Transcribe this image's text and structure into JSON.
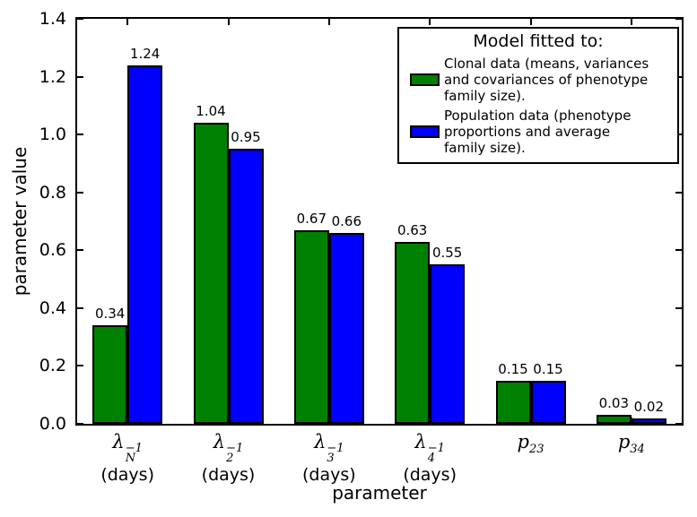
{
  "chart_data": {
    "type": "bar",
    "title": "",
    "xlabel": "parameter",
    "ylabel": "parameter value",
    "ylim": [
      0,
      1.4
    ],
    "ytick_labels": [
      "0.0",
      "0.2",
      "0.4",
      "0.6",
      "0.8",
      "1.0",
      "1.2",
      "1.4"
    ],
    "grid": false,
    "categories": [
      {
        "base": "λ",
        "sup": "−1",
        "sub": "N",
        "unit": "(days)",
        "text": "λ_N^−1 (days)"
      },
      {
        "base": "λ",
        "sup": "−1",
        "sub": "2",
        "unit": "(days)",
        "text": "λ_2^−1 (days)"
      },
      {
        "base": "λ",
        "sup": "−1",
        "sub": "3",
        "unit": "(days)",
        "text": "λ_3^−1 (days)"
      },
      {
        "base": "λ",
        "sup": "−1",
        "sub": "4",
        "unit": "(days)",
        "text": "λ_4^−1 (days)"
      },
      {
        "base": "p",
        "sup": "",
        "sub": "23",
        "unit": "",
        "text": "p_23"
      },
      {
        "base": "p",
        "sup": "",
        "sub": "34",
        "unit": "",
        "text": "p_34"
      }
    ],
    "series": [
      {
        "name": "Clonal data (means, variances and covariances of phenotype family size).",
        "color": "#008000",
        "values": [
          0.34,
          1.04,
          0.67,
          0.63,
          0.15,
          0.03
        ],
        "value_labels": [
          "0.34",
          "1.04",
          "0.67",
          "0.63",
          "0.15",
          "0.03"
        ]
      },
      {
        "name": "Population data (phenotype proportions and average family size).",
        "color": "#0000ff",
        "values": [
          1.24,
          0.95,
          0.66,
          0.55,
          0.15,
          0.02
        ],
        "value_labels": [
          "1.24",
          "0.95",
          "0.66",
          "0.55",
          "0.15",
          "0.02"
        ]
      }
    ],
    "legend": {
      "position": "upper right",
      "title": "Model fitted to:",
      "entries": [
        {
          "color": "#008000",
          "label": "Clonal data (means, variances\nand covariances of phenotype\nfamily size)."
        },
        {
          "color": "#0000ff",
          "label": "Population data (phenotype\nproportions and average\nfamily size)."
        }
      ]
    },
    "bar_edge_color": "#000000",
    "axis_color": "#000000",
    "background_color": "#ffffff"
  }
}
